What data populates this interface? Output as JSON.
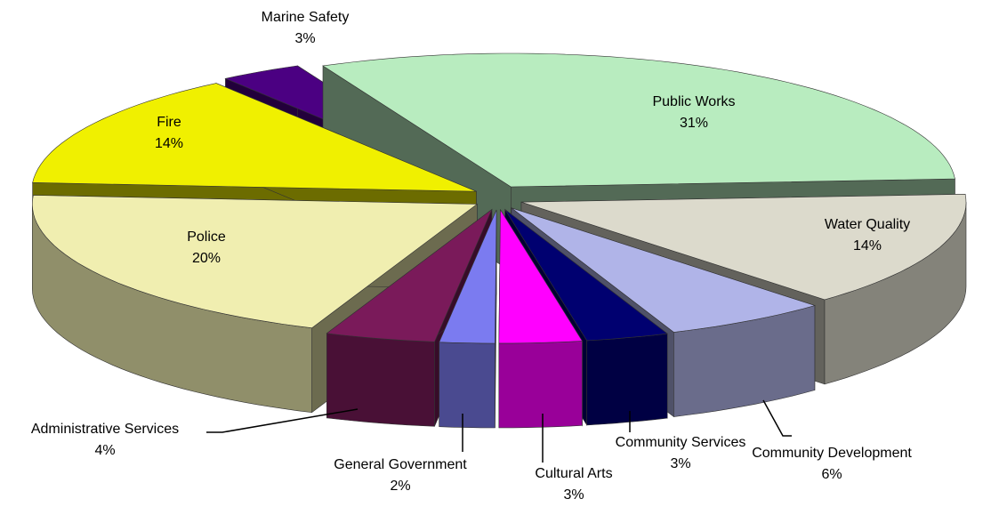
{
  "chart_data": {
    "type": "pie3d",
    "categories": [
      "Public Works",
      "Water Quality",
      "Community Development",
      "Community Services",
      "Cultural Arts",
      "General Government",
      "Administrative Services",
      "Police",
      "Fire",
      "Marine Safety"
    ],
    "values": [
      31,
      14,
      6,
      3,
      3,
      2,
      4,
      20,
      14,
      3
    ],
    "value_labels": [
      "31%",
      "14%",
      "6%",
      "3%",
      "3%",
      "2%",
      "4%",
      "20%",
      "14%",
      "3%"
    ],
    "colors": [
      "#b8ecbf",
      "#dcdacc",
      "#b0b4e8",
      "#000070",
      "#ff00ff",
      "#7b7bf0",
      "#7a1a5a",
      "#f0eeb0",
      "#f0f000",
      "#4b0082"
    ]
  }
}
